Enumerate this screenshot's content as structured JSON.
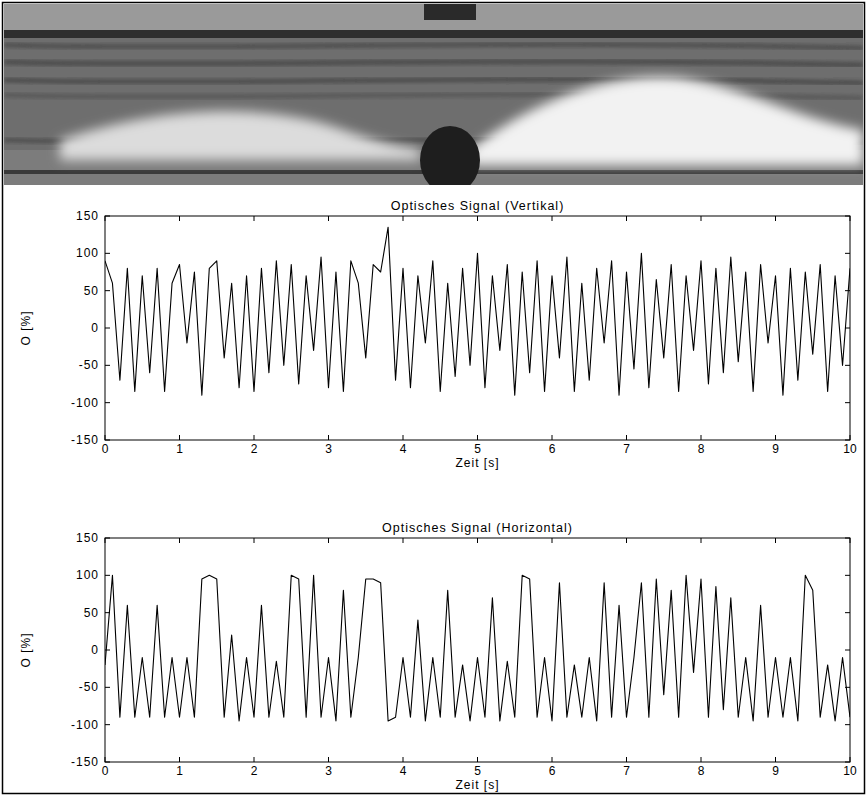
{
  "chart_data": [
    {
      "type": "line",
      "title": "Optisches Signal (Vertikal)",
      "x_label": "Zeit [s]",
      "y_label": "O [%]",
      "color": "#000000",
      "grid": false,
      "xlim": [
        0,
        10
      ],
      "ylim": [
        -150,
        150
      ],
      "xticks": [
        0,
        1,
        2,
        3,
        4,
        5,
        6,
        7,
        8,
        9,
        10
      ],
      "yticks": [
        -150,
        -100,
        -50,
        0,
        50,
        100,
        150
      ],
      "x": [
        0,
        0.1,
        0.2,
        0.3,
        0.4,
        0.5,
        0.6,
        0.7,
        0.8,
        0.9,
        1,
        1.1,
        1.2,
        1.3,
        1.4,
        1.5,
        1.6,
        1.7,
        1.8,
        1.9,
        2,
        2.1,
        2.2,
        2.3,
        2.4,
        2.5,
        2.6,
        2.7,
        2.8,
        2.9,
        3,
        3.1,
        3.2,
        3.3,
        3.4,
        3.5,
        3.6,
        3.7,
        3.8,
        3.9,
        4,
        4.1,
        4.2,
        4.3,
        4.4,
        4.5,
        4.6,
        4.7,
        4.8,
        4.9,
        5,
        5.1,
        5.2,
        5.3,
        5.4,
        5.5,
        5.6,
        5.7,
        5.8,
        5.9,
        6,
        6.1,
        6.2,
        6.3,
        6.4,
        6.5,
        6.6,
        6.7,
        6.8,
        6.9,
        7,
        7.1,
        7.2,
        7.3,
        7.4,
        7.5,
        7.6,
        7.7,
        7.8,
        7.9,
        8,
        8.1,
        8.2,
        8.3,
        8.4,
        8.5,
        8.6,
        8.7,
        8.8,
        8.9,
        9,
        9.1,
        9.2,
        9.3,
        9.4,
        9.5,
        9.6,
        9.7,
        9.8,
        9.9,
        10
      ],
      "values": [
        90,
        60,
        -70,
        80,
        -85,
        70,
        -60,
        80,
        -85,
        60,
        85,
        -20,
        75,
        -90,
        80,
        90,
        -40,
        60,
        -80,
        70,
        -85,
        80,
        -60,
        90,
        -50,
        85,
        -75,
        70,
        -30,
        95,
        -80,
        75,
        -85,
        90,
        60,
        -40,
        85,
        75,
        135,
        -70,
        80,
        -80,
        70,
        -20,
        90,
        -85,
        60,
        -65,
        80,
        -50,
        100,
        -80,
        70,
        -30,
        85,
        -90,
        75,
        -60,
        90,
        -85,
        70,
        -40,
        95,
        -85,
        60,
        -70,
        80,
        -20,
        90,
        -90,
        75,
        -55,
        100,
        -80,
        65,
        -40,
        85,
        -85,
        70,
        -30,
        90,
        -75,
        80,
        -60,
        95,
        -45,
        75,
        -85,
        85,
        -20,
        70,
        -90,
        80,
        -70,
        75,
        -35,
        85,
        -85,
        70,
        -50,
        80
      ]
    },
    {
      "type": "line",
      "title": "Optisches Signal (Horizontal)",
      "x_label": "Zeit [s]",
      "y_label": "O [%]",
      "color": "#000000",
      "grid": false,
      "xlim": [
        0,
        10
      ],
      "ylim": [
        -150,
        150
      ],
      "xticks": [
        0,
        1,
        2,
        3,
        4,
        5,
        6,
        7,
        8,
        9,
        10
      ],
      "yticks": [
        -150,
        -100,
        -50,
        0,
        50,
        100,
        150
      ],
      "x": [
        0,
        0.1,
        0.2,
        0.3,
        0.4,
        0.5,
        0.6,
        0.7,
        0.8,
        0.9,
        1,
        1.1,
        1.2,
        1.3,
        1.4,
        1.5,
        1.6,
        1.7,
        1.8,
        1.9,
        2,
        2.1,
        2.2,
        2.3,
        2.4,
        2.5,
        2.6,
        2.7,
        2.8,
        2.9,
        3,
        3.1,
        3.2,
        3.3,
        3.4,
        3.5,
        3.6,
        3.7,
        3.8,
        3.9,
        4,
        4.1,
        4.2,
        4.3,
        4.4,
        4.5,
        4.6,
        4.7,
        4.8,
        4.9,
        5,
        5.1,
        5.2,
        5.3,
        5.4,
        5.5,
        5.6,
        5.7,
        5.8,
        5.9,
        6,
        6.1,
        6.2,
        6.3,
        6.4,
        6.5,
        6.6,
        6.7,
        6.8,
        6.9,
        7,
        7.1,
        7.2,
        7.3,
        7.4,
        7.5,
        7.6,
        7.7,
        7.8,
        7.9,
        8,
        8.1,
        8.2,
        8.3,
        8.4,
        8.5,
        8.6,
        8.7,
        8.8,
        8.9,
        9,
        9.1,
        9.2,
        9.3,
        9.4,
        9.5,
        9.6,
        9.7,
        9.8,
        9.9,
        10
      ],
      "values": [
        -20,
        100,
        -90,
        60,
        -90,
        -10,
        -90,
        60,
        -90,
        -10,
        -90,
        -10,
        -90,
        95,
        100,
        95,
        -90,
        20,
        -95,
        -10,
        -90,
        60,
        -90,
        -15,
        -90,
        100,
        95,
        -90,
        100,
        -90,
        -10,
        -95,
        80,
        -90,
        -10,
        95,
        95,
        90,
        -95,
        -90,
        -10,
        -90,
        40,
        -95,
        -10,
        -90,
        80,
        -90,
        -20,
        -95,
        -10,
        -90,
        70,
        -95,
        -15,
        -90,
        100,
        95,
        -90,
        -10,
        -95,
        90,
        -90,
        -20,
        -90,
        -10,
        -95,
        90,
        -90,
        60,
        -90,
        -10,
        90,
        -90,
        95,
        -60,
        80,
        -90,
        100,
        -30,
        95,
        -90,
        85,
        -80,
        70,
        -90,
        -10,
        -95,
        60,
        -90,
        -10,
        -90,
        -10,
        -95,
        100,
        80,
        -90,
        -20,
        -95,
        -10,
        -90
      ]
    }
  ]
}
